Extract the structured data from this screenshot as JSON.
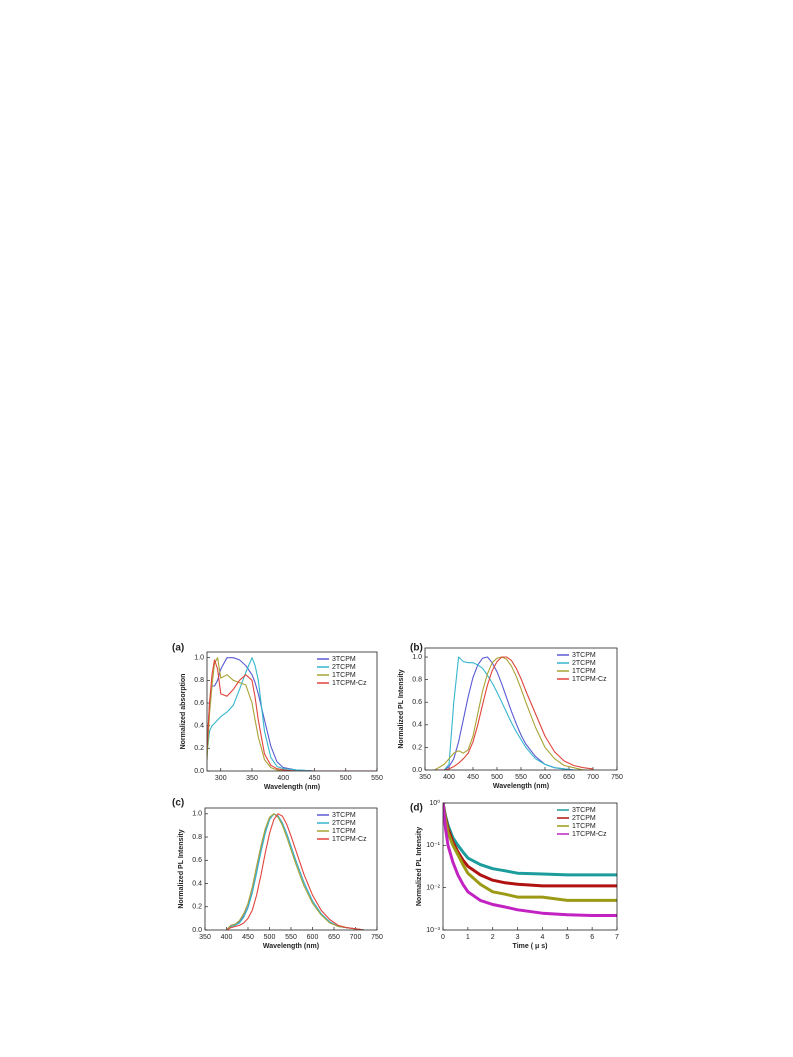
{
  "chart_data": [
    {
      "type": "line",
      "panel_label": "(a)",
      "x_label": "Wavelength (nm)",
      "y_label": "Normalized absorption",
      "x": [
        278,
        282,
        286,
        290,
        295,
        300,
        310,
        320,
        330,
        340,
        350,
        355,
        360,
        370,
        380,
        390,
        400,
        420,
        450,
        500,
        550
      ],
      "xlim": [
        278,
        550
      ],
      "xticks": [
        300,
        350,
        400,
        450,
        500,
        550
      ],
      "ylim": [
        0,
        1.05
      ],
      "yticks": [
        {
          "value": 0,
          "label": "0.0"
        },
        0.2,
        0.4,
        0.6,
        0.8,
        {
          "value": 1,
          "label": "1.0"
        }
      ],
      "log_y": false,
      "grid": false,
      "legend": "upper right",
      "series": [
        {
          "name": "3TCPM",
          "color": "#5a5ad2",
          "values": [
            0.15,
            0.6,
            0.75,
            0.75,
            0.8,
            0.9,
            1.0,
            1.0,
            0.98,
            0.93,
            0.85,
            0.78,
            0.68,
            0.45,
            0.22,
            0.08,
            0.03,
            0.01,
            0,
            0,
            0
          ]
        },
        {
          "name": "2TCPM",
          "color": "#35b6cc",
          "values": [
            0.15,
            0.35,
            0.4,
            0.42,
            0.45,
            0.48,
            0.52,
            0.58,
            0.72,
            0.87,
            1.0,
            0.93,
            0.8,
            0.35,
            0.12,
            0.04,
            0.02,
            0.01,
            0,
            0,
            0
          ]
        },
        {
          "name": "1TCPM",
          "color": "#a9a435",
          "values": [
            0.1,
            0.5,
            0.75,
            0.95,
            1.0,
            0.82,
            0.85,
            0.8,
            0.78,
            0.76,
            0.6,
            0.45,
            0.3,
            0.1,
            0.03,
            0.01,
            0,
            0,
            0,
            0,
            0
          ]
        },
        {
          "name": "1TCPM-Cz",
          "color": "#e0443c",
          "values": [
            0.2,
            0.6,
            0.85,
            0.98,
            0.9,
            0.68,
            0.66,
            0.72,
            0.8,
            0.85,
            0.8,
            0.65,
            0.45,
            0.15,
            0.05,
            0.02,
            0.01,
            0,
            0,
            0,
            0
          ]
        }
      ]
    },
    {
      "type": "line",
      "panel_label": "(b)",
      "x_label": "Wavelength (nm)",
      "y_label": "Normalized PL Intensity",
      "x": [
        370,
        390,
        400,
        410,
        420,
        430,
        440,
        450,
        460,
        470,
        480,
        490,
        500,
        510,
        520,
        530,
        540,
        550,
        560,
        580,
        600,
        620,
        640,
        660,
        680,
        700
      ],
      "xlim": [
        350,
        750
      ],
      "xticks": [
        350,
        400,
        450,
        500,
        550,
        600,
        650,
        700,
        750
      ],
      "ylim": [
        0,
        1.08
      ],
      "yticks": [
        {
          "value": 0,
          "label": "0.0"
        },
        0.2,
        0.4,
        0.6,
        0.8,
        {
          "value": 1,
          "label": "1.0"
        }
      ],
      "log_y": false,
      "grid": false,
      "legend": "upper right",
      "series": [
        {
          "name": "3TCPM",
          "color": "#5a5ad2",
          "values": [
            0,
            0,
            0.03,
            0.1,
            0.25,
            0.45,
            0.65,
            0.82,
            0.93,
            0.99,
            1.0,
            0.95,
            0.87,
            0.76,
            0.64,
            0.52,
            0.41,
            0.31,
            0.23,
            0.12,
            0.05,
            0.02,
            0.01,
            0,
            0,
            0
          ]
        },
        {
          "name": "2TCPM",
          "color": "#35b6cc",
          "values": [
            0,
            0,
            0.05,
            0.6,
            1.0,
            0.96,
            0.95,
            0.95,
            0.93,
            0.9,
            0.84,
            0.77,
            0.69,
            0.6,
            0.51,
            0.42,
            0.34,
            0.27,
            0.2,
            0.1,
            0.05,
            0.02,
            0.01,
            0,
            0,
            0
          ]
        },
        {
          "name": "1TCPM",
          "color": "#a9a435",
          "values": [
            0,
            0.05,
            0.1,
            0.15,
            0.17,
            0.15,
            0.18,
            0.3,
            0.5,
            0.7,
            0.85,
            0.95,
            0.99,
            1.0,
            0.98,
            0.92,
            0.83,
            0.72,
            0.6,
            0.38,
            0.2,
            0.1,
            0.04,
            0.02,
            0,
            0
          ]
        },
        {
          "name": "1TCPM-Cz",
          "color": "#e0443c",
          "values": [
            0,
            0,
            0.01,
            0.03,
            0.06,
            0.1,
            0.15,
            0.25,
            0.4,
            0.58,
            0.75,
            0.88,
            0.96,
            1.0,
            1.0,
            0.97,
            0.9,
            0.81,
            0.7,
            0.5,
            0.3,
            0.16,
            0.08,
            0.04,
            0.02,
            0.01
          ]
        }
      ]
    },
    {
      "type": "line",
      "panel_label": "(c)",
      "x_label": "Wavelength (nm)",
      "y_label": "Normalized PL Intensity",
      "x": [
        400,
        410,
        420,
        430,
        440,
        450,
        460,
        470,
        480,
        490,
        500,
        510,
        520,
        530,
        540,
        550,
        560,
        580,
        600,
        620,
        640,
        660,
        680,
        700,
        720
      ],
      "xlim": [
        350,
        750
      ],
      "xticks": [
        350,
        400,
        450,
        500,
        550,
        600,
        650,
        700,
        750
      ],
      "ylim": [
        0,
        1.05
      ],
      "yticks": [
        {
          "value": 0,
          "label": "0.0"
        },
        0.2,
        0.4,
        0.6,
        0.8,
        {
          "value": 1,
          "label": "1.0"
        }
      ],
      "log_y": false,
      "grid": false,
      "legend": "upper right",
      "series": [
        {
          "name": "3TCPM",
          "color": "#5a5ad2",
          "values": [
            0,
            0.04,
            0.05,
            0.07,
            0.12,
            0.2,
            0.33,
            0.5,
            0.68,
            0.84,
            0.95,
            1.0,
            0.98,
            0.92,
            0.83,
            0.72,
            0.61,
            0.41,
            0.25,
            0.14,
            0.07,
            0.03,
            0.02,
            0.01,
            0
          ]
        },
        {
          "name": "2TCPM",
          "color": "#35b6cc",
          "values": [
            0,
            0.03,
            0.04,
            0.06,
            0.11,
            0.19,
            0.32,
            0.49,
            0.67,
            0.83,
            0.95,
            1.0,
            0.98,
            0.92,
            0.83,
            0.72,
            0.61,
            0.41,
            0.25,
            0.14,
            0.07,
            0.03,
            0.02,
            0.01,
            0
          ]
        },
        {
          "name": "1TCPM",
          "color": "#a9a435",
          "values": [
            0,
            0.04,
            0.05,
            0.08,
            0.14,
            0.23,
            0.37,
            0.55,
            0.72,
            0.87,
            0.97,
            1.0,
            0.97,
            0.9,
            0.8,
            0.69,
            0.58,
            0.38,
            0.23,
            0.13,
            0.06,
            0.03,
            0.02,
            0.01,
            0
          ]
        },
        {
          "name": "1TCPM-Cz",
          "color": "#e0443c",
          "values": [
            0,
            0.02,
            0.03,
            0.04,
            0.06,
            0.1,
            0.17,
            0.3,
            0.47,
            0.66,
            0.83,
            0.95,
            1.0,
            0.98,
            0.91,
            0.81,
            0.7,
            0.48,
            0.3,
            0.17,
            0.09,
            0.04,
            0.02,
            0.01,
            0
          ]
        }
      ]
    },
    {
      "type": "line",
      "panel_label": "(d)",
      "x_label": "Time ( μ s)",
      "y_label": "Normalized PL Intensity",
      "x": [
        0,
        0.1,
        0.2,
        0.4,
        0.6,
        0.8,
        1,
        1.5,
        2,
        2.5,
        3,
        4,
        5,
        6,
        7
      ],
      "xlim": [
        0,
        7
      ],
      "xticks": [
        0,
        1,
        2,
        3,
        4,
        5,
        6,
        7
      ],
      "ylim": [
        0.001,
        1
      ],
      "yticks": [
        {
          "value": 0.001,
          "label": "10⁻³"
        },
        {
          "value": 0.01,
          "label": "10⁻²"
        },
        {
          "value": 0.1,
          "label": "10⁻¹"
        },
        {
          "value": 1,
          "label": "10⁰"
        }
      ],
      "log_y": true,
      "grid": false,
      "legend": "upper right",
      "series": [
        {
          "name": "3TCPM",
          "color": "#1c9c9c",
          "values": [
            1,
            0.5,
            0.3,
            0.15,
            0.1,
            0.07,
            0.05,
            0.035,
            0.028,
            0.025,
            0.022,
            0.021,
            0.02,
            0.02,
            0.02
          ]
        },
        {
          "name": "2TCPM",
          "color": "#b01212",
          "values": [
            1,
            0.45,
            0.25,
            0.12,
            0.07,
            0.045,
            0.032,
            0.02,
            0.015,
            0.013,
            0.012,
            0.011,
            0.011,
            0.011,
            0.011
          ]
        },
        {
          "name": "1TCPM",
          "color": "#9c9a14",
          "values": [
            1,
            0.4,
            0.2,
            0.1,
            0.06,
            0.035,
            0.022,
            0.012,
            0.008,
            0.007,
            0.006,
            0.006,
            0.005,
            0.005,
            0.005
          ]
        },
        {
          "name": "1TCPM-Cz",
          "color": "#c222c2",
          "values": [
            1,
            0.25,
            0.1,
            0.04,
            0.02,
            0.012,
            0.008,
            0.005,
            0.004,
            0.0035,
            0.003,
            0.0025,
            0.0023,
            0.0022,
            0.0022
          ]
        }
      ]
    }
  ]
}
